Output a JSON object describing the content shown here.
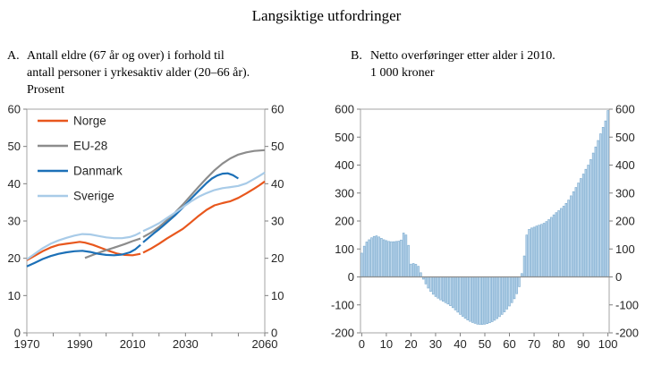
{
  "title": "Langsiktige utfordringer",
  "colors": {
    "frame": "#a6a6a6",
    "tick": "#7f7f7f",
    "text": "#262626",
    "zero_line": "#8c8c8c",
    "background": "#ffffff"
  },
  "chart_data": [
    {
      "type": "line",
      "panel": "A",
      "heading": {
        "label": "A.",
        "lines": [
          "Antall eldre (67 år og over) i forhold til",
          "antall personer i yrkesaktiv alder (20–66 år).",
          "Prosent"
        ]
      },
      "xlim": [
        1970,
        2060
      ],
      "ylim": [
        0,
        60
      ],
      "yticks": [
        0,
        10,
        20,
        30,
        40,
        50,
        60
      ],
      "xticks": [
        1970,
        1980,
        1990,
        2000,
        2010,
        2020,
        2030,
        2040,
        2050,
        2060
      ],
      "xticks_labeled": [
        1970,
        1990,
        2010,
        2030,
        2060
      ],
      "grid": false,
      "legend_position": "top-left",
      "note": "each series split in two segments: history up to 2013, projection after",
      "series": [
        {
          "name": "Norge",
          "color": "#e8571d",
          "segments": [
            [
              [
                1970,
                19.5
              ],
              [
                1973,
                20.7
              ],
              [
                1976,
                21.9
              ],
              [
                1979,
                22.9
              ],
              [
                1982,
                23.6
              ],
              [
                1985,
                23.9
              ],
              [
                1988,
                24.2
              ],
              [
                1990,
                24.4
              ],
              [
                1992,
                24.2
              ],
              [
                1995,
                23.6
              ],
              [
                1998,
                22.8
              ],
              [
                2001,
                22.0
              ],
              [
                2004,
                21.3
              ],
              [
                2007,
                20.9
              ],
              [
                2010,
                20.8
              ],
              [
                2013,
                21.2
              ]
            ],
            [
              [
                2014,
                21.5
              ],
              [
                2017,
                22.6
              ],
              [
                2020,
                23.9
              ],
              [
                2023,
                25.3
              ],
              [
                2026,
                26.6
              ],
              [
                2029,
                27.9
              ],
              [
                2032,
                29.6
              ],
              [
                2035,
                31.4
              ],
              [
                2038,
                33.0
              ],
              [
                2041,
                34.2
              ],
              [
                2044,
                34.8
              ],
              [
                2047,
                35.3
              ],
              [
                2050,
                36.2
              ],
              [
                2053,
                37.4
              ],
              [
                2056,
                38.7
              ],
              [
                2058,
                39.6
              ],
              [
                2060,
                40.6
              ]
            ]
          ]
        },
        {
          "name": "EU-28",
          "color": "#8c8c8c",
          "segments": [
            [
              [
                1992,
                20.1
              ],
              [
                1995,
                20.9
              ],
              [
                1998,
                21.7
              ],
              [
                2001,
                22.4
              ],
              [
                2004,
                23.1
              ],
              [
                2007,
                23.8
              ],
              [
                2010,
                24.6
              ],
              [
                2013,
                25.3
              ]
            ],
            [
              [
                2014,
                25.7
              ],
              [
                2017,
                26.9
              ],
              [
                2020,
                28.4
              ],
              [
                2023,
                30.2
              ],
              [
                2026,
                32.2
              ],
              [
                2029,
                34.4
              ],
              [
                2032,
                36.8
              ],
              [
                2035,
                39.2
              ],
              [
                2038,
                41.5
              ],
              [
                2041,
                43.6
              ],
              [
                2044,
                45.4
              ],
              [
                2047,
                46.8
              ],
              [
                2050,
                47.8
              ],
              [
                2053,
                48.4
              ],
              [
                2056,
                48.8
              ],
              [
                2060,
                49.0
              ]
            ]
          ]
        },
        {
          "name": "Danmark",
          "color": "#1c70b7",
          "segments": [
            [
              [
                1970,
                17.8
              ],
              [
                1973,
                18.8
              ],
              [
                1976,
                19.8
              ],
              [
                1979,
                20.6
              ],
              [
                1982,
                21.2
              ],
              [
                1985,
                21.6
              ],
              [
                1988,
                21.9
              ],
              [
                1991,
                22.0
              ],
              [
                1994,
                21.7
              ],
              [
                1997,
                21.2
              ],
              [
                2000,
                20.9
              ],
              [
                2003,
                20.8
              ],
              [
                2006,
                21.0
              ],
              [
                2009,
                21.6
              ],
              [
                2011,
                22.4
              ],
              [
                2013,
                23.6
              ]
            ],
            [
              [
                2014,
                24.3
              ],
              [
                2016,
                25.5
              ],
              [
                2018,
                26.7
              ],
              [
                2020,
                27.8
              ],
              [
                2023,
                29.6
              ],
              [
                2026,
                31.5
              ],
              [
                2029,
                33.6
              ],
              [
                2032,
                35.9
              ],
              [
                2035,
                38.1
              ],
              [
                2038,
                40.2
              ],
              [
                2040,
                41.4
              ],
              [
                2042,
                42.2
              ],
              [
                2044,
                42.7
              ],
              [
                2046,
                42.8
              ],
              [
                2048,
                42.3
              ],
              [
                2050,
                41.4
              ]
            ]
          ]
        },
        {
          "name": "Sverige",
          "color": "#a8cbe8",
          "segments": [
            [
              [
                1970,
                19.7
              ],
              [
                1973,
                21.2
              ],
              [
                1976,
                22.7
              ],
              [
                1979,
                23.9
              ],
              [
                1982,
                24.8
              ],
              [
                1985,
                25.5
              ],
              [
                1988,
                26.1
              ],
              [
                1991,
                26.5
              ],
              [
                1994,
                26.4
              ],
              [
                1997,
                26.0
              ],
              [
                2000,
                25.6
              ],
              [
                2003,
                25.4
              ],
              [
                2006,
                25.4
              ],
              [
                2009,
                25.7
              ],
              [
                2011,
                26.2
              ],
              [
                2013,
                26.9
              ]
            ],
            [
              [
                2014,
                27.3
              ],
              [
                2017,
                28.3
              ],
              [
                2020,
                29.4
              ],
              [
                2023,
                30.8
              ],
              [
                2026,
                32.2
              ],
              [
                2029,
                33.7
              ],
              [
                2032,
                35.2
              ],
              [
                2035,
                36.5
              ],
              [
                2038,
                37.5
              ],
              [
                2041,
                38.3
              ],
              [
                2044,
                38.8
              ],
              [
                2047,
                39.1
              ],
              [
                2050,
                39.4
              ],
              [
                2053,
                40.1
              ],
              [
                2056,
                41.3
              ],
              [
                2058,
                42.1
              ],
              [
                2060,
                43.0
              ]
            ]
          ]
        }
      ]
    },
    {
      "type": "bar",
      "panel": "B",
      "heading": {
        "label": "B.",
        "lines": [
          "Netto overføringer etter alder i 2010.",
          "1 000 kroner"
        ]
      },
      "ylim": [
        -200,
        600
      ],
      "yticks": [
        -200,
        -100,
        0,
        100,
        200,
        300,
        400,
        500,
        600
      ],
      "xticks": [
        0,
        10,
        20,
        30,
        40,
        50,
        60,
        70,
        80,
        90,
        100
      ],
      "age_start": 0,
      "grid": false,
      "bar_color": "#bdd7ec",
      "bar_edge": "#77a8ce",
      "values": [
        85,
        110,
        125,
        133,
        140,
        145,
        147,
        143,
        138,
        133,
        130,
        127,
        126,
        126,
        127,
        128,
        132,
        157,
        150,
        113,
        46,
        48,
        45,
        38,
        15,
        -8,
        -25,
        -40,
        -52,
        -62,
        -70,
        -76,
        -82,
        -87,
        -92,
        -97,
        -103,
        -110,
        -118,
        -126,
        -134,
        -141,
        -148,
        -154,
        -159,
        -163,
        -166,
        -169,
        -170,
        -170,
        -169,
        -167,
        -164,
        -160,
        -155,
        -149,
        -142,
        -134,
        -125,
        -115,
        -104,
        -92,
        -78,
        -60,
        -35,
        12,
        75,
        150,
        170,
        175,
        178,
        182,
        185,
        188,
        192,
        198,
        205,
        213,
        222,
        230,
        237,
        245,
        253,
        263,
        275,
        290,
        305,
        320,
        336,
        352,
        368,
        385,
        400,
        420,
        443,
        465,
        488,
        512,
        535,
        558,
        595
      ]
    }
  ]
}
